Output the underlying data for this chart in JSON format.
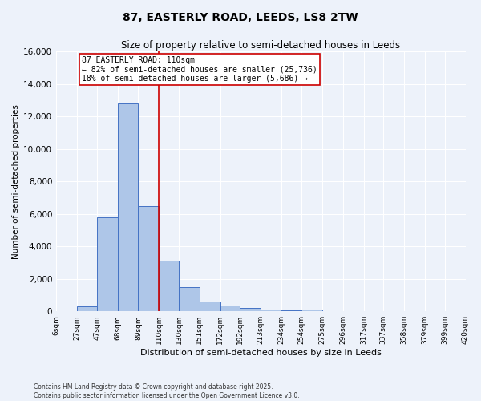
{
  "title": "87, EASTERLY ROAD, LEEDS, LS8 2TW",
  "subtitle": "Size of property relative to semi-detached houses in Leeds",
  "xlabel": "Distribution of semi-detached houses by size in Leeds",
  "ylabel": "Number of semi-detached properties",
  "bin_labels": [
    "6sqm",
    "27sqm",
    "47sqm",
    "68sqm",
    "89sqm",
    "110sqm",
    "130sqm",
    "151sqm",
    "172sqm",
    "192sqm",
    "213sqm",
    "234sqm",
    "254sqm",
    "275sqm",
    "296sqm",
    "317sqm",
    "337sqm",
    "358sqm",
    "379sqm",
    "399sqm",
    "420sqm"
  ],
  "bin_edges": [
    6,
    27,
    47,
    68,
    89,
    110,
    130,
    151,
    172,
    192,
    213,
    234,
    254,
    275,
    296,
    317,
    337,
    358,
    379,
    399,
    420
  ],
  "bar_values": [
    0,
    300,
    5800,
    12800,
    6500,
    3100,
    1500,
    600,
    350,
    200,
    100,
    50,
    100,
    0,
    0,
    0,
    0,
    0,
    0,
    0
  ],
  "bar_color": "#aec6e8",
  "bar_edge_color": "#4472c4",
  "property_value": 110,
  "vline_color": "#cc0000",
  "annotation_text": "87 EASTERLY ROAD: 110sqm\n← 82% of semi-detached houses are smaller (25,736)\n18% of semi-detached houses are larger (5,686) →",
  "annotation_box_color": "#ffffff",
  "annotation_box_edge": "#cc0000",
  "ylim": [
    0,
    16000
  ],
  "yticks": [
    0,
    2000,
    4000,
    6000,
    8000,
    10000,
    12000,
    14000,
    16000
  ],
  "background_color": "#edf2fa",
  "footer_line1": "Contains HM Land Registry data © Crown copyright and database right 2025.",
  "footer_line2": "Contains public sector information licensed under the Open Government Licence v3.0.",
  "grid_color": "#ffffff"
}
